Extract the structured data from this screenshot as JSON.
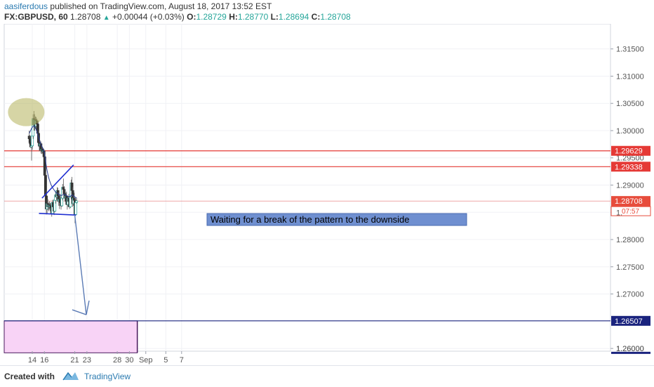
{
  "header": {
    "author": "aasiferdous",
    "published_text": "published on TradingView.com, August 18, 2017 13:52 EST",
    "symbol": "FX:GBPUSD, 60",
    "last_price": "1.28708",
    "change": "+0.00044 (+0.03%)",
    "open_label": "O:",
    "open_value": "1.28729",
    "high_label": "H:",
    "high_value": "1.28770",
    "low_label": "L:",
    "low_value": "1.28694",
    "close_label": "C:",
    "close_value": "1.28708"
  },
  "chart_data": {
    "type": "candlestick",
    "y_ticks": [
      "1.31500",
      "1.31000",
      "1.30500",
      "1.30000",
      "1.29500",
      "1.29000",
      "1.28500",
      "1.28000",
      "1.27500",
      "1.27000",
      "1.26000"
    ],
    "ylim": [
      1.2595,
      1.3196
    ],
    "x_ticks": [
      "14",
      "16",
      "21",
      "23",
      "28",
      "30",
      "Sep",
      "5",
      "7"
    ],
    "price_levels": [
      {
        "label": "1.29629",
        "value": 1.29629,
        "color": "#e53935"
      },
      {
        "label": "1.29338",
        "value": 1.29338,
        "color": "#e53935"
      },
      {
        "label": "1.26507",
        "value": 1.26507,
        "color": "#1a237e"
      }
    ],
    "current_price": {
      "label": "1.28708",
      "value": 1.28708,
      "countdown": "07:57"
    },
    "partial_tick_labels": [
      "1.",
      "1.26000"
    ],
    "annotation": "Waiting for a break of the pattern to the downside",
    "candles": [
      [
        1.299,
        1.3,
        1.2975,
        1.2985
      ],
      [
        1.2985,
        1.2992,
        1.297,
        1.2978
      ],
      [
        1.2978,
        1.299,
        1.2968,
        1.297
      ],
      [
        1.297,
        1.2985,
        1.2945,
        1.2972
      ],
      [
        1.2972,
        1.2995,
        1.2965,
        1.299
      ],
      [
        1.299,
        1.303,
        1.2985,
        1.3022
      ],
      [
        1.3022,
        1.3036,
        1.3,
        1.301
      ],
      [
        1.301,
        1.303,
        1.3,
        1.302
      ],
      [
        1.302,
        1.3026,
        1.3003,
        1.3008
      ],
      [
        1.3008,
        1.3025,
        1.3,
        1.3018
      ],
      [
        1.3018,
        1.3022,
        1.3002,
        1.3012
      ],
      [
        1.3012,
        1.3018,
        1.299,
        1.2995
      ],
      [
        1.2995,
        1.3,
        1.297,
        1.2978
      ],
      [
        1.2978,
        1.2985,
        1.2962,
        1.2972
      ],
      [
        1.2972,
        1.2982,
        1.2966,
        1.2976
      ],
      [
        1.2976,
        1.298,
        1.2958,
        1.2964
      ],
      [
        1.2964,
        1.2972,
        1.2957,
        1.2966
      ],
      [
        1.2966,
        1.297,
        1.2958,
        1.2962
      ],
      [
        1.2962,
        1.2968,
        1.2956,
        1.2963
      ],
      [
        1.2963,
        1.2966,
        1.295,
        1.2952
      ],
      [
        1.2952,
        1.2956,
        1.291,
        1.2918
      ],
      [
        1.2918,
        1.2925,
        1.287,
        1.288
      ],
      [
        1.288,
        1.289,
        1.2846,
        1.2856
      ],
      [
        1.2856,
        1.2874,
        1.2848,
        1.2866
      ],
      [
        1.2866,
        1.2874,
        1.2854,
        1.286
      ],
      [
        1.286,
        1.2868,
        1.2852,
        1.2864
      ],
      [
        1.2864,
        1.287,
        1.2855,
        1.286
      ],
      [
        1.286,
        1.2867,
        1.2852,
        1.2862
      ],
      [
        1.2862,
        1.2868,
        1.2853,
        1.2858
      ],
      [
        1.2858,
        1.2866,
        1.2842,
        1.2848
      ],
      [
        1.2848,
        1.2872,
        1.2846,
        1.2868
      ],
      [
        1.2868,
        1.2874,
        1.2855,
        1.286
      ],
      [
        1.286,
        1.2864,
        1.2845,
        1.2852
      ],
      [
        1.2852,
        1.2876,
        1.285,
        1.2872
      ],
      [
        1.2872,
        1.2888,
        1.2866,
        1.2882
      ],
      [
        1.2882,
        1.289,
        1.2872,
        1.2878
      ],
      [
        1.2878,
        1.2896,
        1.2874,
        1.289
      ],
      [
        1.289,
        1.2895,
        1.2875,
        1.288
      ],
      [
        1.288,
        1.2888,
        1.2862,
        1.287
      ],
      [
        1.287,
        1.288,
        1.2856,
        1.2874
      ],
      [
        1.2874,
        1.2884,
        1.2864,
        1.2868
      ],
      [
        1.2868,
        1.2878,
        1.2855,
        1.2862
      ],
      [
        1.2862,
        1.288,
        1.286,
        1.2876
      ],
      [
        1.2876,
        1.2902,
        1.2872,
        1.2896
      ],
      [
        1.2896,
        1.2912,
        1.2888,
        1.2892
      ],
      [
        1.2892,
        1.2898,
        1.2878,
        1.2884
      ],
      [
        1.2884,
        1.2892,
        1.287,
        1.2876
      ],
      [
        1.2876,
        1.2886,
        1.2864,
        1.288
      ],
      [
        1.288,
        1.2888,
        1.2866,
        1.287
      ],
      [
        1.287,
        1.2878,
        1.2855,
        1.2864
      ],
      [
        1.2864,
        1.288,
        1.286,
        1.2876
      ],
      [
        1.2876,
        1.2884,
        1.2866,
        1.287
      ],
      [
        1.287,
        1.2876,
        1.2856,
        1.286
      ],
      [
        1.286,
        1.2882,
        1.2858,
        1.2878
      ],
      [
        1.2878,
        1.291,
        1.2874,
        1.2904
      ],
      [
        1.2904,
        1.2915,
        1.2885,
        1.289
      ],
      [
        1.289,
        1.2896,
        1.286,
        1.2866
      ],
      [
        1.2866,
        1.288,
        1.2862,
        1.2876
      ],
      [
        1.2876,
        1.2886,
        1.2866,
        1.2872
      ],
      [
        1.2872,
        1.2876,
        1.283,
        1.2846
      ],
      [
        1.2846,
        1.2874,
        1.2844,
        1.2868
      ],
      [
        1.2868,
        1.2877,
        1.2866,
        1.2871
      ]
    ],
    "moving_average": [
      1.2995,
      1.2998,
      1.3001,
      1.3004,
      1.3006,
      1.3008,
      1.3008,
      1.3007,
      1.3005,
      1.3002,
      1.2998,
      1.2993,
      1.2988,
      1.2983,
      1.2979,
      1.2975,
      1.2972,
      1.2969,
      1.2966,
      1.2963,
      1.2955,
      1.2945,
      1.2935,
      1.2927,
      1.292,
      1.2914,
      1.2909,
      1.2905,
      1.2901,
      1.2898,
      1.2895,
      1.2893,
      1.2891,
      1.2889,
      1.2887,
      1.2886,
      1.2885,
      1.2884,
      1.2883,
      1.2882,
      1.2881,
      1.2881,
      1.2881,
      1.2882,
      1.2883,
      1.2883,
      1.2883,
      1.2882,
      1.2881,
      1.288,
      1.2879,
      1.2879,
      1.2879,
      1.2879,
      1.2881,
      1.2882,
      1.2881,
      1.288,
      1.2879,
      1.2878,
      1.2877,
      1.2876
    ],
    "drawings": {
      "upper_trendline": [
        [
          1.2876,
          15.6
        ],
        [
          1.2937,
          20.8
        ]
      ],
      "lower_trendline": [
        [
          1.2848,
          15.1
        ],
        [
          1.2845,
          21.2
        ]
      ],
      "arrow": [
        [
          1.2845,
          21.0
        ],
        [
          1.2662,
          22.9
        ]
      ],
      "target_zone": {
        "top": 1.26507,
        "bottom": 1.2592,
        "to_day": 31.3
      }
    }
  },
  "footer": {
    "created_with": "Created with",
    "brand": "TradingView"
  }
}
